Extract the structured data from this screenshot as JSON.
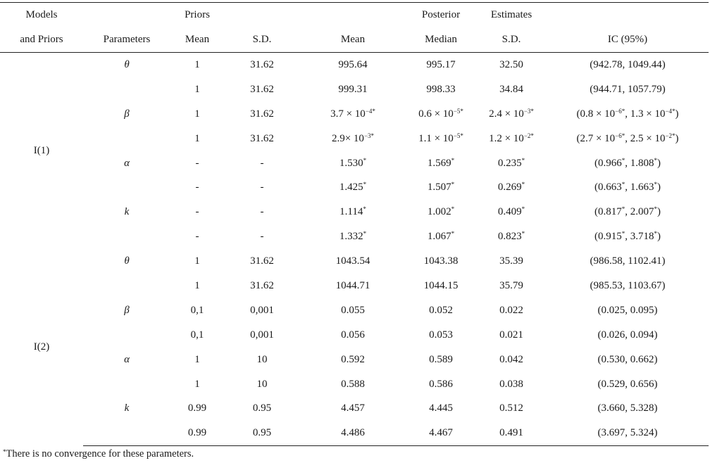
{
  "header": {
    "row1": [
      "Models",
      "",
      "Priors",
      "",
      "",
      "Posterior",
      "Estimates",
      ""
    ],
    "row2": [
      "and Priors",
      "Parameters",
      "Mean",
      "S.D.",
      "Mean",
      "Median",
      "S.D.",
      "IC (95%)"
    ]
  },
  "groups": [
    {
      "model": "I(1)",
      "params": [
        {
          "symbol": "θ",
          "rows": [
            {
              "pmean": "1",
              "psd": "31.62",
              "mean": "995.64",
              "median": "995.17",
              "sd": "32.50",
              "ic": "(942.78, 1049.44)"
            },
            {
              "pmean": "1",
              "psd": "31.62",
              "mean": "999.31",
              "median": "998.33",
              "sd": "34.84",
              "ic": "(944.71, 1057.79)"
            }
          ]
        },
        {
          "symbol": "β",
          "rows": [
            {
              "pmean": "1",
              "psd": "31.62",
              "mean": "3.7 × 10<sup>−4*</sup>",
              "median": "0.6 × 10<sup>−5*</sup>",
              "sd": "2.4 × 10<sup>−3*</sup>",
              "ic": "(0.8 × 10<sup>−6*</sup>, 1.3 × 10<sup>−4*</sup>)"
            },
            {
              "pmean": "1",
              "psd": "31.62",
              "mean": "2.9× 10<sup>−3*</sup>",
              "median": "1.1 × 10<sup>−5*</sup>",
              "sd": "1.2 × 10<sup>−2*</sup>",
              "ic": "(2.7 × 10<sup>−6*</sup>, 2.5 × 10<sup>−2*</sup>)"
            }
          ]
        },
        {
          "symbol": "α",
          "rows": [
            {
              "pmean": "-",
              "psd": "-",
              "mean": "1.530<sup>*</sup>",
              "median": "1.569<sup>*</sup>",
              "sd": "0.235<sup>*</sup>",
              "ic": "(0.966<sup>*</sup>, 1.808<sup>*</sup>)"
            },
            {
              "pmean": "-",
              "psd": "-",
              "mean": "1.425<sup>*</sup>",
              "median": "1.507<sup>*</sup>",
              "sd": "0.269<sup>*</sup>",
              "ic": "(0.663<sup>*</sup>, 1.663<sup>*</sup>)"
            }
          ]
        },
        {
          "symbol": "k",
          "rows": [
            {
              "pmean": "-",
              "psd": "-",
              "mean": "1.114<sup>*</sup>",
              "median": "1.002<sup>*</sup>",
              "sd": "0.409<sup>*</sup>",
              "ic": "(0.817<sup>*</sup>, 2.007<sup>*</sup>)"
            },
            {
              "pmean": "-",
              "psd": "-",
              "mean": "1.332<sup>*</sup>",
              "median": "1.067<sup>*</sup>",
              "sd": "0.823<sup>*</sup>",
              "ic": "(0.915<sup>*</sup>, 3.718<sup>*</sup>)"
            }
          ]
        }
      ]
    },
    {
      "model": "I(2)",
      "params": [
        {
          "symbol": "θ",
          "rows": [
            {
              "pmean": "1",
              "psd": "31.62",
              "mean": "1043.54",
              "median": "1043.38",
              "sd": "35.39",
              "ic": "(986.58, 1102.41)"
            },
            {
              "pmean": "1",
              "psd": "31.62",
              "mean": "1044.71",
              "median": "1044.15",
              "sd": "35.79",
              "ic": "(985.53, 1103.67)"
            }
          ]
        },
        {
          "symbol": "β",
          "rows": [
            {
              "pmean": "0,1",
              "psd": "0,001",
              "mean": "0.055",
              "median": "0.052",
              "sd": "0.022",
              "ic": "(0.025, 0.095)"
            },
            {
              "pmean": "0,1",
              "psd": "0,001",
              "mean": "0.056",
              "median": "0.053",
              "sd": "0.021",
              "ic": "(0.026, 0.094)"
            }
          ]
        },
        {
          "symbol": "α",
          "rows": [
            {
              "pmean": "1",
              "psd": "10",
              "mean": "0.592",
              "median": "0.589",
              "sd": "0.042",
              "ic": "(0.530, 0.662)"
            },
            {
              "pmean": "1",
              "psd": "10",
              "mean": "0.588",
              "median": "0.586",
              "sd": "0.038",
              "ic": "(0.529, 0.656)"
            }
          ]
        },
        {
          "symbol": "k",
          "rows": [
            {
              "pmean": "0.99",
              "psd": "0.95",
              "mean": "4.457",
              "median": "4.445",
              "sd": "0.512",
              "ic": "(3.660, 5.328)"
            },
            {
              "pmean": "0.99",
              "psd": "0.95",
              "mean": "4.486",
              "median": "4.467",
              "sd": "0.491",
              "ic": "(3.697, 5.324)"
            }
          ]
        }
      ]
    }
  ],
  "footnote": {
    "mark": "*",
    "text": "There is no convergence for these parameters."
  }
}
